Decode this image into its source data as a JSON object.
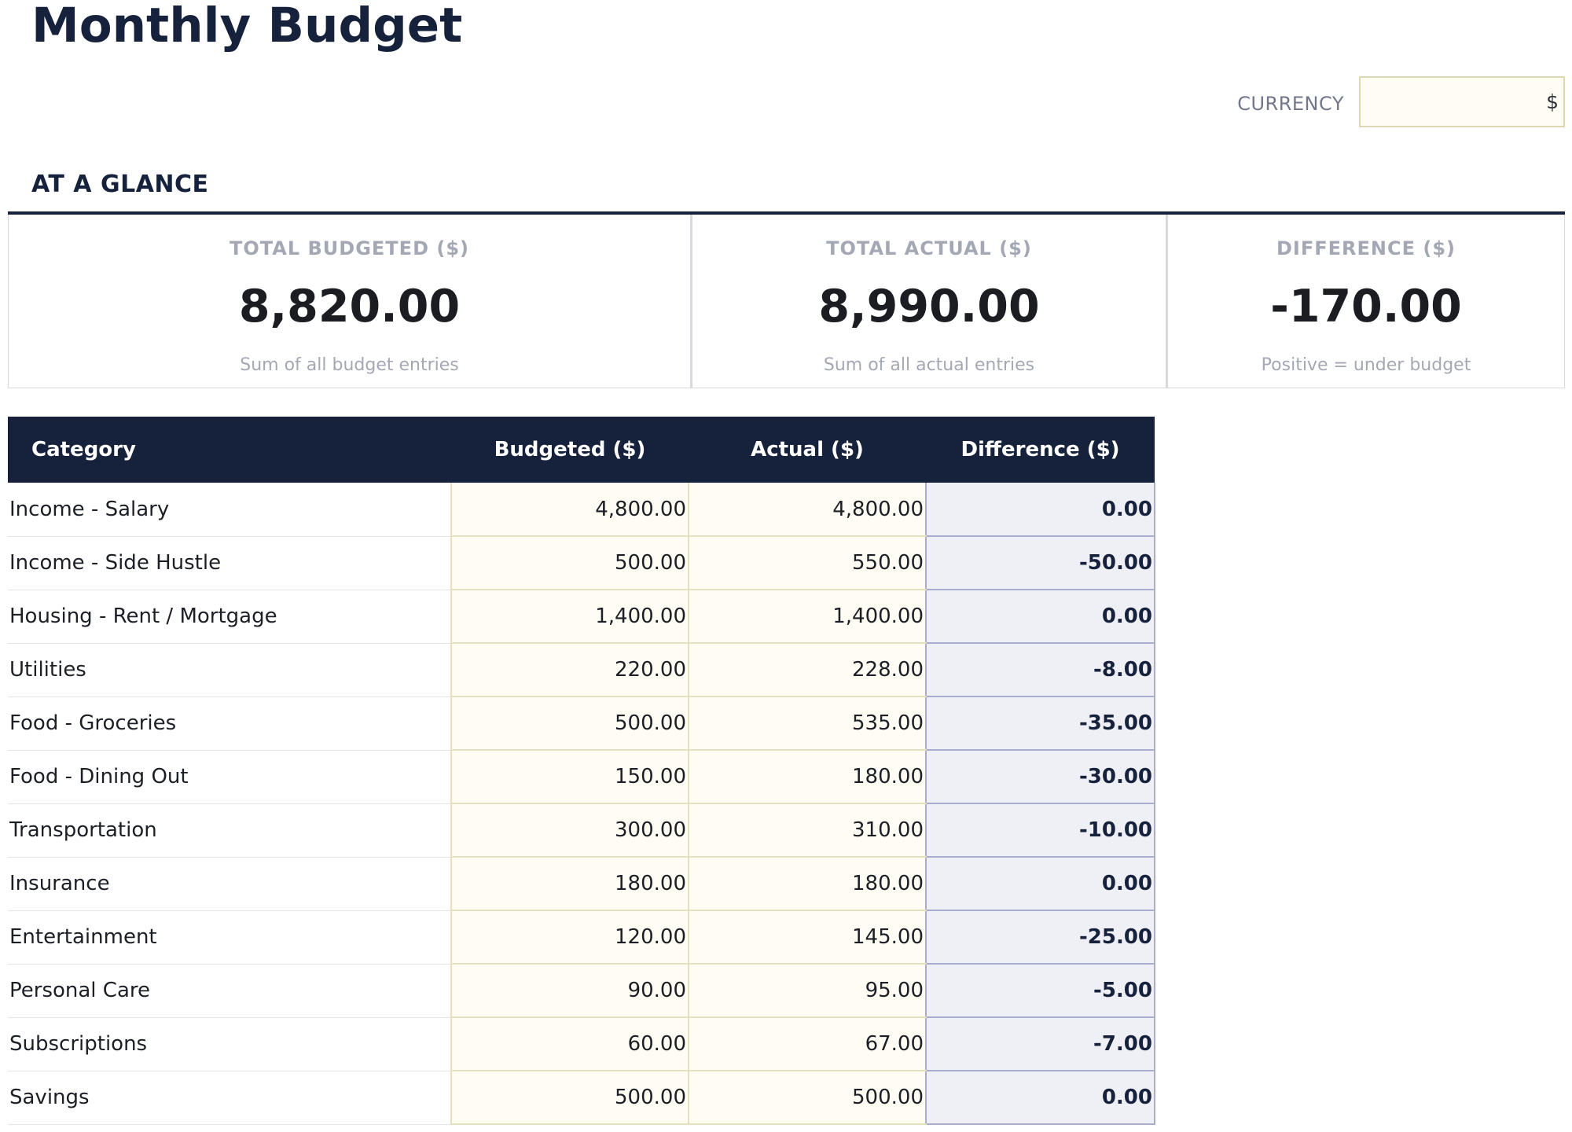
{
  "header": {
    "title": "Monthly Budget",
    "currency_label": "CURRENCY",
    "currency_value": "$"
  },
  "summary": {
    "heading": "AT A GLANCE",
    "cards": [
      {
        "label": "TOTAL BUDGETED ($)",
        "value": "8,820.00",
        "note": "Sum of all budget entries"
      },
      {
        "label": "TOTAL ACTUAL ($)",
        "value": "8,990.00",
        "note": "Sum of all actual entries"
      },
      {
        "label": "DIFFERENCE ($)",
        "value": "-170.00",
        "note": "Positive = under budget"
      }
    ]
  },
  "table": {
    "columns": [
      "Category",
      "Budgeted ($)",
      "Actual ($)",
      "Difference ($)"
    ],
    "rows": [
      {
        "category": "Income - Salary",
        "budgeted": "4,800.00",
        "actual": "4,800.00",
        "difference": "0.00"
      },
      {
        "category": "Income - Side Hustle",
        "budgeted": "500.00",
        "actual": "550.00",
        "difference": "-50.00"
      },
      {
        "category": "Housing - Rent / Mortgage",
        "budgeted": "1,400.00",
        "actual": "1,400.00",
        "difference": "0.00"
      },
      {
        "category": "Utilities",
        "budgeted": "220.00",
        "actual": "228.00",
        "difference": "-8.00"
      },
      {
        "category": "Food - Groceries",
        "budgeted": "500.00",
        "actual": "535.00",
        "difference": "-35.00"
      },
      {
        "category": "Food - Dining Out",
        "budgeted": "150.00",
        "actual": "180.00",
        "difference": "-30.00"
      },
      {
        "category": "Transportation",
        "budgeted": "300.00",
        "actual": "310.00",
        "difference": "-10.00"
      },
      {
        "category": "Insurance",
        "budgeted": "180.00",
        "actual": "180.00",
        "difference": "0.00"
      },
      {
        "category": "Entertainment",
        "budgeted": "120.00",
        "actual": "145.00",
        "difference": "-25.00"
      },
      {
        "category": "Personal Care",
        "budgeted": "90.00",
        "actual": "95.00",
        "difference": "-5.00"
      },
      {
        "category": "Subscriptions",
        "budgeted": "60.00",
        "actual": "67.00",
        "difference": "-7.00"
      },
      {
        "category": "Savings",
        "budgeted": "500.00",
        "actual": "500.00",
        "difference": "0.00"
      }
    ]
  }
}
